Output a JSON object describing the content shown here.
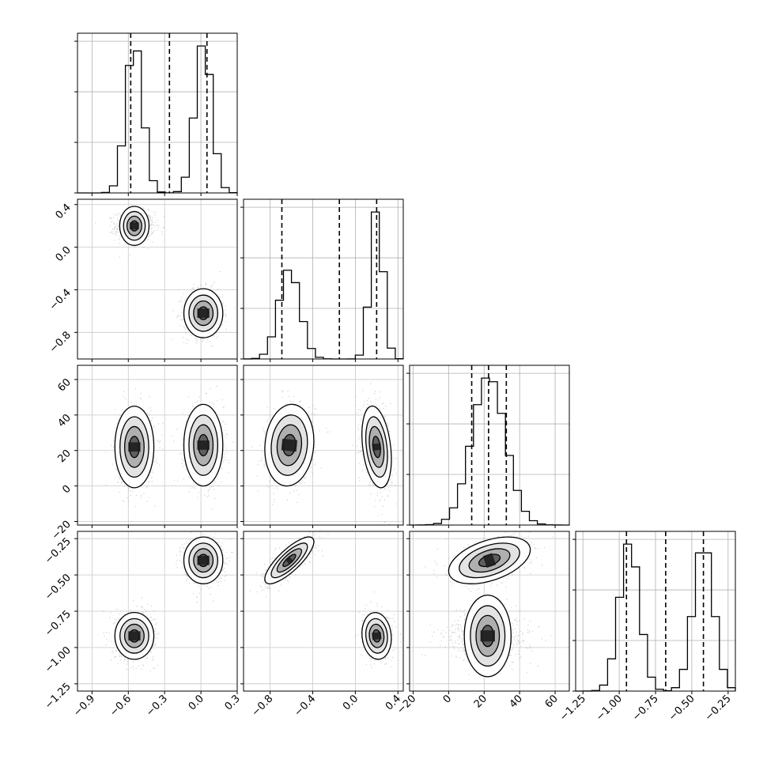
{
  "chart_data": {
    "type": "corner",
    "title": "",
    "grid": true,
    "parameters": [
      {
        "label": "",
        "range": [
          -1.02,
          0.3
        ],
        "ticks": [
          -0.9,
          -0.6,
          -0.3,
          0.0,
          0.3
        ],
        "tick_labels": [
          "−0.9",
          "−0.6",
          "−0.3",
          "0.0",
          "0.3"
        ],
        "quantiles": [
          -0.58,
          -0.26,
          0.05
        ],
        "modes": [
          {
            "mean": -0.55,
            "sd": 0.07,
            "weight": 0.5
          },
          {
            "mean": 0.02,
            "sd": 0.07,
            "weight": 0.5
          }
        ]
      },
      {
        "label": "",
        "range": [
          -1.05,
          0.45
        ],
        "ticks": [
          -0.8,
          -0.4,
          0.0,
          0.4
        ],
        "tick_labels": [
          "−0.8",
          "−0.4",
          "0.0",
          "0.4"
        ],
        "quantiles": [
          -0.69,
          -0.15,
          0.2
        ],
        "modes": [
          {
            "mean": 0.2,
            "sd": 0.06,
            "weight": 0.5
          },
          {
            "mean": -0.62,
            "sd": 0.1,
            "weight": 0.5
          }
        ]
      },
      {
        "label": "",
        "range": [
          -22,
          68
        ],
        "ticks": [
          -20,
          0,
          20,
          40,
          60
        ],
        "tick_labels": [
          "−20",
          "0",
          "20",
          "40",
          "60"
        ],
        "quantiles": [
          13,
          22.5,
          32.5
        ],
        "modes": [
          {
            "mean": 22.5,
            "sd": 9.5,
            "weight": 1.0
          }
        ]
      },
      {
        "label": "",
        "range": [
          -1.3,
          -0.2
        ],
        "ticks": [
          -1.25,
          -1.0,
          -0.75,
          -0.5,
          -0.25
        ],
        "tick_labels": [
          "−1.25",
          "−1.00",
          "−0.75",
          "−0.50",
          "−0.25"
        ],
        "quantiles": [
          -0.95,
          -0.68,
          -0.42
        ],
        "modes": [
          {
            "mean": -0.93,
            "sd": 0.07,
            "weight": 0.5
          },
          {
            "mean": -0.42,
            "sd": 0.07,
            "weight": 0.5
          }
        ]
      }
    ],
    "clusters": [
      {
        "center": [
          -0.55,
          0.2,
          22,
          -0.92
        ],
        "sd": [
          0.07,
          0.06,
          10,
          0.07
        ],
        "rho": {
          "1-2": -0.3,
          "1-3": -0.1,
          "2-3": 0.0,
          "0-1": 0.0,
          "0-2": 0.0,
          "0-3": 0.0
        }
      },
      {
        "center": [
          0.02,
          -0.62,
          23,
          -0.4
        ],
        "sd": [
          0.07,
          0.1,
          10,
          0.07
        ],
        "rho": {
          "1-2": 0.1,
          "1-3": 0.8,
          "2-3": 0.45,
          "0-1": 0.0,
          "0-2": 0.0,
          "0-3": 0.0
        }
      }
    ]
  }
}
